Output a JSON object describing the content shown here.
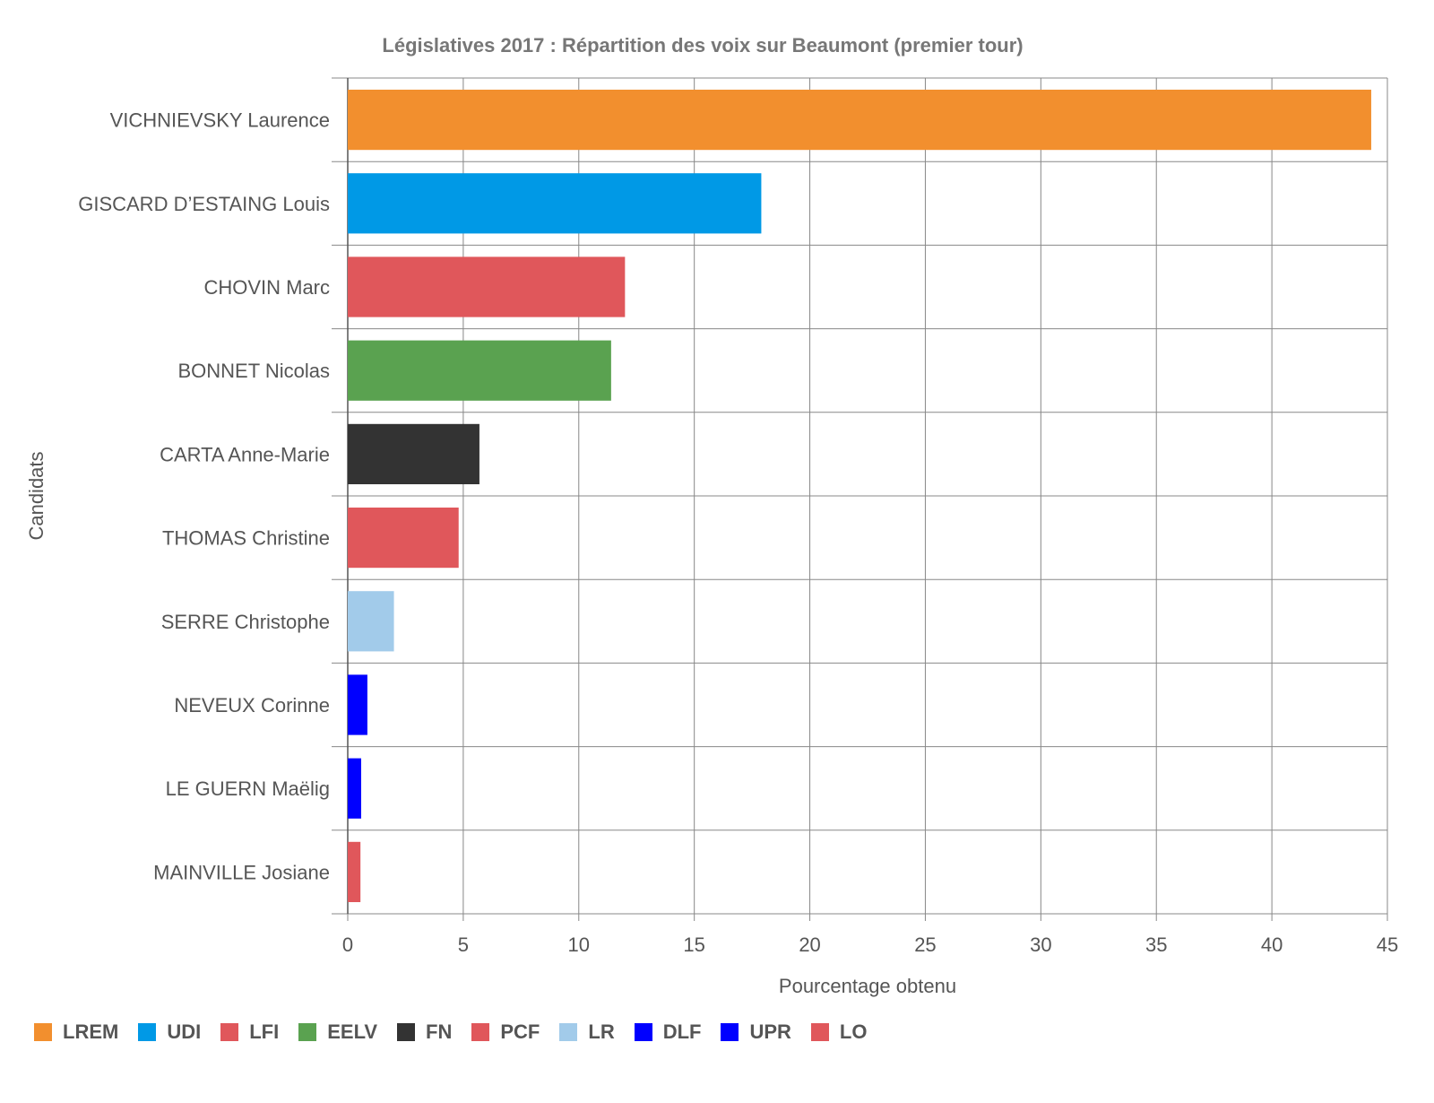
{
  "chart_data": {
    "type": "bar",
    "orientation": "horizontal",
    "title": "Législatives 2017 : Répartition des voix sur Beaumont (premier tour)",
    "xlabel": "Pourcentage obtenu",
    "ylabel": "Candidats",
    "xlim": [
      0,
      45
    ],
    "xticks": [
      0,
      5,
      10,
      15,
      20,
      25,
      30,
      35,
      40,
      45
    ],
    "grid": true,
    "legend_position": "bottom-left",
    "categories": [
      "VICHNIEVSKY Laurence",
      "GISCARD D’ESTAING Louis",
      "CHOVIN Marc",
      "BONNET Nicolas",
      "CARTA Anne-Marie",
      "THOMAS Christine",
      "SERRE Christophe",
      "NEVEUX Corinne",
      "LE GUERN Maëlig",
      "MAINVILLE Josiane"
    ],
    "values": [
      44.3,
      17.9,
      12.0,
      11.4,
      5.7,
      4.8,
      2.0,
      0.85,
      0.58,
      0.55
    ],
    "colors": [
      "#f28f2e",
      "#0099e6",
      "#e0575b",
      "#5aa250",
      "#333333",
      "#e0575b",
      "#a2cbea",
      "#0000ff",
      "#0000ff",
      "#e0575b"
    ],
    "legend": [
      {
        "label": "LREM",
        "color": "#f28f2e"
      },
      {
        "label": "UDI",
        "color": "#0099e6"
      },
      {
        "label": "LFI",
        "color": "#e0575b"
      },
      {
        "label": "EELV",
        "color": "#5aa250"
      },
      {
        "label": "FN",
        "color": "#333333"
      },
      {
        "label": "PCF",
        "color": "#e0575b"
      },
      {
        "label": "LR",
        "color": "#a2cbea"
      },
      {
        "label": "DLF",
        "color": "#0000ff"
      },
      {
        "label": "UPR",
        "color": "#0000ff"
      },
      {
        "label": "LO",
        "color": "#e0575b"
      }
    ]
  }
}
